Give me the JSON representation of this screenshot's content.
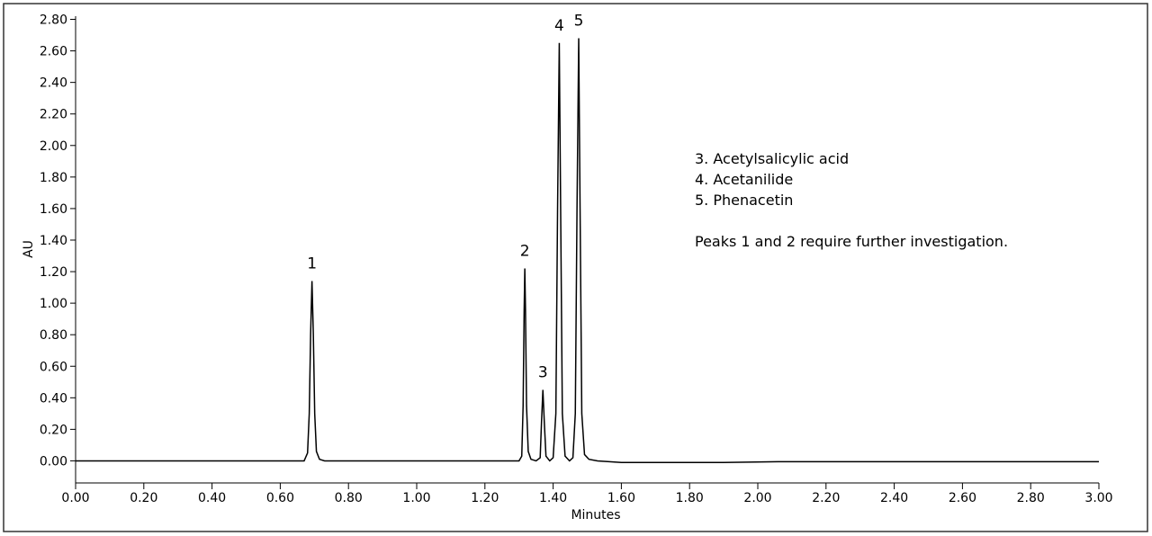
{
  "chart_data": {
    "type": "line",
    "x_label": "Minutes",
    "y_label": "AU",
    "xlim": [
      0,
      3
    ],
    "ylim": [
      -0.14,
      2.82
    ],
    "xticks": [
      {
        "value": 0,
        "label": "0.00"
      },
      {
        "value": 0.2,
        "label": "0.20"
      },
      {
        "value": 0.4,
        "label": "0.40"
      },
      {
        "value": 0.6,
        "label": "0.60"
      },
      {
        "value": 0.8,
        "label": "0.80"
      },
      {
        "value": 1.0,
        "label": "1.00"
      },
      {
        "value": 1.2,
        "label": "1.20"
      },
      {
        "value": 1.4,
        "label": "1.40"
      },
      {
        "value": 1.6,
        "label": "1.60"
      },
      {
        "value": 1.8,
        "label": "1.80"
      },
      {
        "value": 2.0,
        "label": "2.00"
      },
      {
        "value": 2.2,
        "label": "2.20"
      },
      {
        "value": 2.4,
        "label": "2.40"
      },
      {
        "value": 2.6,
        "label": "2.60"
      },
      {
        "value": 2.8,
        "label": "2.80"
      },
      {
        "value": 3.0,
        "label": "3.00"
      }
    ],
    "yticks": [
      {
        "value": 0,
        "label": "0.00"
      },
      {
        "value": 0.2,
        "label": "0.20"
      },
      {
        "value": 0.4,
        "label": "0.40"
      },
      {
        "value": 0.6,
        "label": "0.60"
      },
      {
        "value": 0.8,
        "label": "0.80"
      },
      {
        "value": 1.0,
        "label": "1.00"
      },
      {
        "value": 1.2,
        "label": "1.20"
      },
      {
        "value": 1.4,
        "label": "1.40"
      },
      {
        "value": 1.6,
        "label": "1.60"
      },
      {
        "value": 1.8,
        "label": "1.80"
      },
      {
        "value": 2.0,
        "label": "2.00"
      },
      {
        "value": 2.2,
        "label": "2.20"
      },
      {
        "value": 2.4,
        "label": "2.40"
      },
      {
        "value": 2.6,
        "label": "2.60"
      },
      {
        "value": 2.8,
        "label": "2.80"
      }
    ],
    "x": [
      0,
      0.6,
      0.67,
      0.68,
      0.685,
      0.689,
      0.693,
      0.697,
      0.701,
      0.706,
      0.715,
      0.73,
      1.3,
      1.308,
      1.312,
      1.315,
      1.317,
      1.319,
      1.322,
      1.327,
      1.335,
      1.35,
      1.362,
      1.366,
      1.37,
      1.374,
      1.379,
      1.39,
      1.4,
      1.408,
      1.413,
      1.418,
      1.422,
      1.427,
      1.435,
      1.448,
      1.458,
      1.465,
      1.47,
      1.475,
      1.479,
      1.484,
      1.492,
      1.505,
      1.53,
      1.6,
      1.9,
      2.06,
      3.0
    ],
    "series": [
      {
        "color": "#000000",
        "values": [
          0,
          0,
          0,
          0.05,
          0.3,
          0.8,
          1.14,
          0.8,
          0.3,
          0.06,
          0.01,
          0,
          0,
          0.03,
          0.35,
          0.95,
          1.22,
          0.95,
          0.35,
          0.06,
          0.01,
          0,
          0.02,
          0.25,
          0.45,
          0.25,
          0.03,
          0,
          0.02,
          0.3,
          1.6,
          2.65,
          1.6,
          0.3,
          0.03,
          0,
          0.02,
          0.3,
          1.6,
          2.68,
          1.6,
          0.3,
          0.04,
          0.01,
          0,
          -0.01,
          -0.01,
          -0.005,
          -0.005
        ]
      }
    ],
    "annotations": [
      {
        "text": "1",
        "x": 0.693,
        "y": 1.14
      },
      {
        "text": "2",
        "x": 1.317,
        "y": 1.22
      },
      {
        "text": "3",
        "x": 1.37,
        "y": 0.45
      },
      {
        "text": "4",
        "x": 1.418,
        "y": 2.65
      },
      {
        "text": "5",
        "x": 1.475,
        "y": 2.68
      }
    ],
    "notes": [
      "3. Acetylsalicylic acid",
      "4. Acetanilide",
      "5. Phenacetin",
      "Peaks 1 and 2 require further investigation."
    ]
  }
}
